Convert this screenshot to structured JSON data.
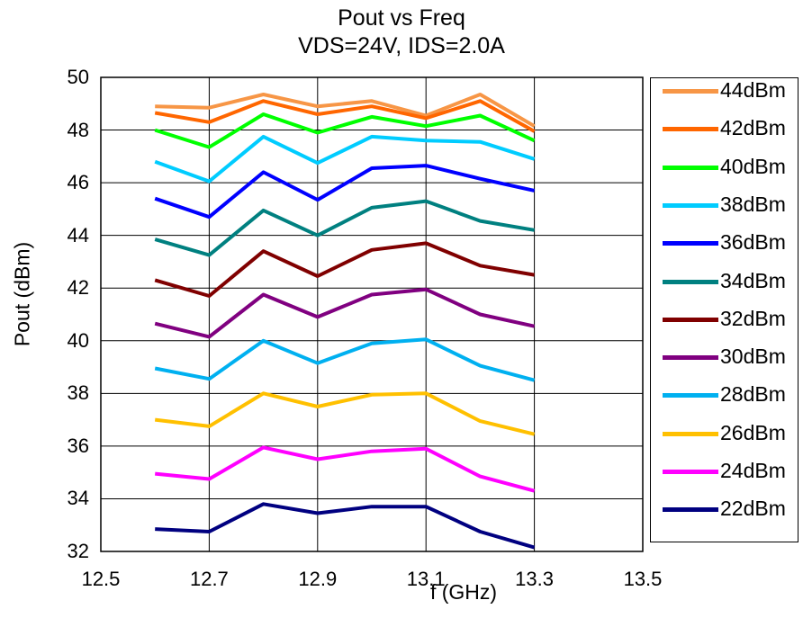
{
  "chart_data": {
    "type": "line",
    "title": "Pout vs Freq",
    "subtitle": "VDS=24V, IDS=2.0A",
    "xlabel": "f (GHz)",
    "ylabel": "Pout (dBm)",
    "xlim": [
      12.5,
      13.5
    ],
    "ylim": [
      32,
      50
    ],
    "xticks": [
      "12.5",
      "12.7",
      "12.9",
      "13.1",
      "13.3",
      "13.5"
    ],
    "yticks": [
      "32",
      "34",
      "36",
      "38",
      "40",
      "42",
      "44",
      "46",
      "48",
      "50"
    ],
    "grid": "vertical-and-horizontal",
    "legend_position": "right",
    "x": [
      12.6,
      12.7,
      12.8,
      12.9,
      13.0,
      13.1,
      13.2,
      13.3
    ],
    "series": [
      {
        "name": "44dBm",
        "color": "#F79646",
        "values": [
          48.9,
          48.85,
          49.35,
          48.9,
          49.1,
          48.55,
          49.35,
          48.15
        ]
      },
      {
        "name": "42dBm",
        "color": "#FF6600",
        "values": [
          48.65,
          48.3,
          49.1,
          48.6,
          48.9,
          48.45,
          49.1,
          47.95
        ]
      },
      {
        "name": "40dBm",
        "color": "#00FF00",
        "values": [
          48.0,
          47.35,
          48.6,
          47.9,
          48.5,
          48.15,
          48.55,
          47.6
        ]
      },
      {
        "name": "38dBm",
        "color": "#00CCFF",
        "values": [
          46.8,
          46.05,
          47.75,
          46.75,
          47.75,
          47.6,
          47.55,
          46.9
        ]
      },
      {
        "name": "36dBm",
        "color": "#0000FF",
        "values": [
          45.4,
          44.7,
          46.4,
          45.35,
          46.55,
          46.65,
          46.15,
          45.7
        ]
      },
      {
        "name": "34dBm",
        "color": "#008080",
        "values": [
          43.85,
          43.25,
          44.95,
          44.0,
          45.05,
          45.3,
          44.55,
          44.2
        ]
      },
      {
        "name": "32dBm",
        "color": "#800000",
        "values": [
          42.3,
          41.7,
          43.4,
          42.45,
          43.45,
          43.7,
          42.85,
          42.5
        ]
      },
      {
        "name": "30dBm",
        "color": "#800080",
        "values": [
          40.65,
          40.15,
          41.75,
          40.9,
          41.75,
          41.95,
          41.0,
          40.55
        ]
      },
      {
        "name": "28dBm",
        "color": "#00B0F0",
        "values": [
          38.95,
          38.55,
          40.0,
          39.15,
          39.9,
          40.05,
          39.05,
          38.5
        ]
      },
      {
        "name": "26dBm",
        "color": "#FFC000",
        "values": [
          37.0,
          36.75,
          38.0,
          37.5,
          37.95,
          38.0,
          36.95,
          36.45
        ]
      },
      {
        "name": "24dBm",
        "color": "#FF00FF",
        "values": [
          34.95,
          34.75,
          35.95,
          35.5,
          35.8,
          35.9,
          34.85,
          34.3
        ]
      },
      {
        "name": "22dBm",
        "color": "#000080",
        "values": [
          32.85,
          32.75,
          33.8,
          33.45,
          33.7,
          33.7,
          32.75,
          32.15
        ]
      }
    ]
  }
}
